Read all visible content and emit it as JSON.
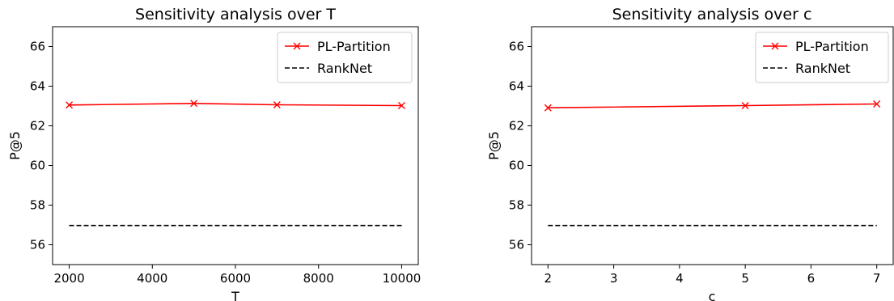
{
  "chart_data": [
    {
      "type": "line",
      "title": "Sensitivity analysis over T",
      "xlabel": "T",
      "ylabel": "P@5",
      "xlim": [
        1600,
        10400
      ],
      "ylim": [
        55,
        67
      ],
      "xticks": [
        2000,
        4000,
        6000,
        8000,
        10000
      ],
      "yticks": [
        56,
        58,
        60,
        62,
        64,
        66
      ],
      "legend_position": "top-right",
      "series": [
        {
          "name": "PL-Partition",
          "color": "#ff0000",
          "style": "solid",
          "marker": "x",
          "x": [
            2000,
            5000,
            7000,
            10000
          ],
          "y": [
            63.05,
            63.13,
            63.06,
            63.02
          ]
        },
        {
          "name": "RankNet",
          "color": "#000000",
          "style": "dashed",
          "marker": "none",
          "x": [
            2000,
            10000
          ],
          "y": [
            56.97,
            56.97
          ]
        }
      ]
    },
    {
      "type": "line",
      "title": "Sensitivity analysis over c",
      "xlabel": "c",
      "ylabel": "P@5",
      "xlim": [
        1.75,
        7.25
      ],
      "ylim": [
        55,
        67
      ],
      "xticks": [
        2,
        3,
        4,
        5,
        6,
        7
      ],
      "yticks": [
        56,
        58,
        60,
        62,
        64,
        66
      ],
      "legend_position": "top-right",
      "series": [
        {
          "name": "PL-Partition",
          "color": "#ff0000",
          "style": "solid",
          "marker": "x",
          "x": [
            2,
            5,
            7
          ],
          "y": [
            62.91,
            63.02,
            63.1
          ]
        },
        {
          "name": "RankNet",
          "color": "#000000",
          "style": "dashed",
          "marker": "none",
          "x": [
            2,
            7
          ],
          "y": [
            56.97,
            56.97
          ]
        }
      ]
    }
  ]
}
